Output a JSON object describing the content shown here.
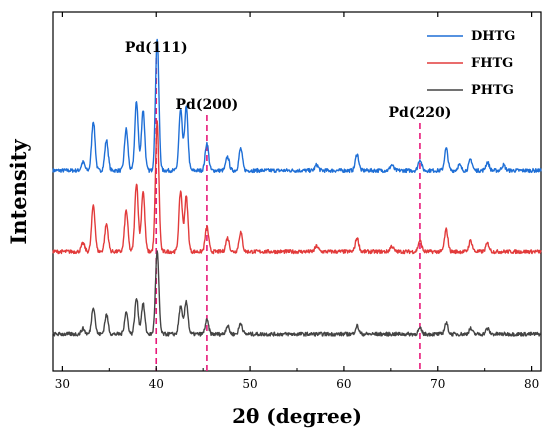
{
  "chart_data": {
    "type": "line",
    "title": "",
    "xlabel": "2θ (degree)",
    "ylabel": "Intensity",
    "xlim": [
      29,
      81
    ],
    "xticks": [
      30,
      40,
      50,
      60,
      70,
      80
    ],
    "x_tick_labels": [
      "30",
      "40",
      "50",
      "60",
      "70",
      "80"
    ],
    "y_ticks_shown": false,
    "grid": false,
    "legend_position": "top-right",
    "series": [
      {
        "name": "DHTG",
        "color": "#1f6fd6",
        "baseline": 0.62,
        "peaks": [
          [
            32.2,
            0.03
          ],
          [
            33.3,
            0.18
          ],
          [
            34.7,
            0.11
          ],
          [
            36.8,
            0.15
          ],
          [
            37.9,
            0.25
          ],
          [
            38.6,
            0.22
          ],
          [
            40.1,
            0.48
          ],
          [
            42.6,
            0.22
          ],
          [
            43.2,
            0.23
          ],
          [
            45.4,
            0.1
          ],
          [
            47.6,
            0.05
          ],
          [
            49.0,
            0.08
          ],
          [
            57.1,
            0.02
          ],
          [
            61.4,
            0.06
          ],
          [
            65.1,
            0.02
          ],
          [
            68.1,
            0.04
          ],
          [
            70.9,
            0.08
          ],
          [
            72.3,
            0.02
          ],
          [
            73.5,
            0.04
          ],
          [
            75.3,
            0.03
          ],
          [
            77.0,
            0.02
          ]
        ]
      },
      {
        "name": "FHTG",
        "color": "#e23b3b",
        "baseline": 0.325,
        "peaks": [
          [
            32.2,
            0.03
          ],
          [
            33.3,
            0.17
          ],
          [
            34.7,
            0.1
          ],
          [
            36.8,
            0.15
          ],
          [
            37.9,
            0.25
          ],
          [
            38.6,
            0.22
          ],
          [
            40.1,
            0.47
          ],
          [
            42.6,
            0.22
          ],
          [
            43.2,
            0.2
          ],
          [
            45.4,
            0.09
          ],
          [
            47.6,
            0.05
          ],
          [
            49.0,
            0.07
          ],
          [
            57.1,
            0.02
          ],
          [
            61.4,
            0.05
          ],
          [
            65.1,
            0.02
          ],
          [
            68.1,
            0.04
          ],
          [
            70.9,
            0.08
          ],
          [
            73.5,
            0.04
          ],
          [
            75.3,
            0.03
          ]
        ]
      },
      {
        "name": "PHTG",
        "color": "#444444",
        "baseline": 0.025,
        "peaks": [
          [
            32.2,
            0.02
          ],
          [
            33.3,
            0.1
          ],
          [
            34.7,
            0.07
          ],
          [
            36.8,
            0.08
          ],
          [
            37.9,
            0.13
          ],
          [
            38.6,
            0.11
          ],
          [
            40.1,
            0.3
          ],
          [
            42.6,
            0.1
          ],
          [
            43.2,
            0.12
          ],
          [
            45.4,
            0.05
          ],
          [
            47.6,
            0.03
          ],
          [
            49.0,
            0.04
          ],
          [
            61.4,
            0.03
          ],
          [
            68.1,
            0.02
          ],
          [
            70.9,
            0.04
          ],
          [
            73.5,
            0.02
          ],
          [
            75.3,
            0.02
          ]
        ]
      }
    ],
    "reference_lines": [
      {
        "x": 40.0,
        "label": "Pd(111)",
        "color": "#e8197a"
      },
      {
        "x": 45.4,
        "label": "Pd(200)",
        "color": "#e8197a"
      },
      {
        "x": 68.1,
        "label": "Pd(220)",
        "color": "#e8197a"
      }
    ]
  }
}
